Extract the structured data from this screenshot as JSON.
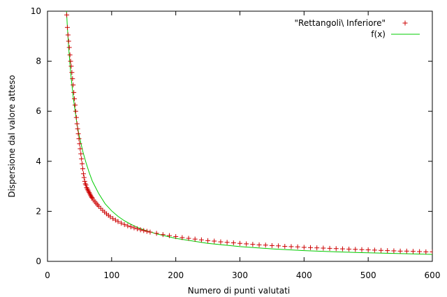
{
  "chart_data": {
    "type": "scatter",
    "title": "",
    "xlabel": "Numero di punti valutati",
    "ylabel": "Dispersione dal valore atteso",
    "xlim": [
      0,
      600
    ],
    "ylim": [
      0,
      10
    ],
    "x_ticks": [
      "0",
      "100",
      "200",
      "300",
      "400",
      "500",
      "600"
    ],
    "y_ticks": [
      "0",
      "2",
      "4",
      "6",
      "8",
      "10"
    ],
    "grid": false,
    "legend_position": "top-right",
    "series": [
      {
        "name": "\"Rettangoli\\ Inferiore\"",
        "style": "points",
        "marker": "+",
        "color": "#cc0000",
        "x": [
          30,
          31,
          32,
          33,
          34,
          35,
          36,
          37,
          38,
          39,
          40,
          41,
          42,
          43,
          44,
          45,
          46,
          47,
          48,
          49,
          50,
          51,
          52,
          53,
          54,
          55,
          56,
          57,
          58,
          59,
          60,
          61,
          62,
          63,
          64,
          65,
          66,
          67,
          68,
          69,
          70,
          72,
          74,
          76,
          78,
          80,
          83,
          86,
          89,
          92,
          95,
          98,
          102,
          106,
          110,
          115,
          120,
          125,
          130,
          135,
          140,
          145,
          150,
          155,
          160,
          170,
          180,
          190,
          200,
          210,
          220,
          230,
          240,
          250,
          260,
          270,
          280,
          290,
          300,
          310,
          320,
          330,
          340,
          350,
          360,
          370,
          380,
          390,
          400,
          410,
          420,
          430,
          440,
          450,
          460,
          470,
          480,
          490,
          500,
          510,
          520,
          530,
          540,
          550,
          560,
          570,
          580,
          590,
          600
        ],
        "y": [
          9.85,
          9.35,
          9.05,
          8.8,
          8.55,
          8.25,
          8.0,
          7.8,
          7.55,
          7.3,
          7.05,
          6.75,
          6.5,
          6.25,
          6.0,
          5.75,
          5.5,
          5.3,
          5.1,
          4.9,
          4.7,
          4.5,
          4.3,
          4.1,
          3.9,
          3.7,
          3.5,
          3.35,
          3.2,
          3.1,
          3.05,
          2.95,
          2.9,
          2.85,
          2.8,
          2.75,
          2.7,
          2.65,
          2.6,
          2.56,
          2.52,
          2.45,
          2.38,
          2.32,
          2.26,
          2.2,
          2.12,
          2.04,
          1.97,
          1.9,
          1.84,
          1.78,
          1.71,
          1.65,
          1.59,
          1.53,
          1.47,
          1.42,
          1.38,
          1.34,
          1.3,
          1.26,
          1.23,
          1.2,
          1.17,
          1.12,
          1.07,
          1.03,
          0.99,
          0.95,
          0.92,
          0.89,
          0.86,
          0.83,
          0.81,
          0.78,
          0.76,
          0.74,
          0.72,
          0.7,
          0.68,
          0.66,
          0.65,
          0.63,
          0.62,
          0.6,
          0.59,
          0.58,
          0.56,
          0.55,
          0.54,
          0.53,
          0.52,
          0.51,
          0.5,
          0.49,
          0.48,
          0.47,
          0.46,
          0.45,
          0.44,
          0.43,
          0.42,
          0.41,
          0.41,
          0.4,
          0.39,
          0.38,
          0.38
        ]
      },
      {
        "name": "f(x)",
        "style": "line",
        "color": "#00cc00",
        "x": [
          29,
          31,
          33,
          35,
          37,
          40,
          43,
          46,
          50,
          55,
          60,
          65,
          70,
          75,
          80,
          90,
          100,
          110,
          120,
          130,
          140,
          150,
          170,
          200,
          250,
          300,
          350,
          400,
          450,
          500,
          550,
          600
        ],
        "y": [
          10.3,
          9.35,
          8.55,
          7.9,
          7.3,
          6.6,
          6.0,
          5.5,
          4.95,
          4.4,
          3.95,
          3.55,
          3.2,
          2.95,
          2.7,
          2.3,
          2.02,
          1.8,
          1.62,
          1.48,
          1.36,
          1.26,
          1.1,
          0.92,
          0.72,
          0.59,
          0.5,
          0.43,
          0.38,
          0.34,
          0.31,
          0.28
        ]
      }
    ]
  }
}
